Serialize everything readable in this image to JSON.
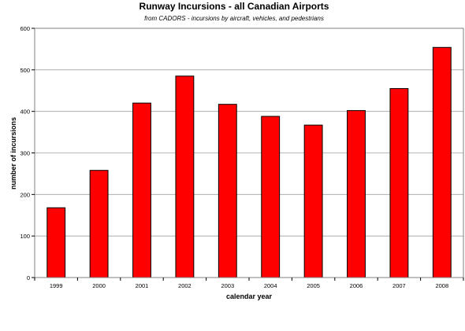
{
  "chart_data": {
    "type": "bar",
    "title": "Runway Incursions - all Canadian Airports",
    "subtitle": "from CADORS - incursions by aircraft, vehicles, and pedestrians",
    "xlabel": "calendar year",
    "ylabel": "number of incursions",
    "categories": [
      "1999",
      "2000",
      "2001",
      "2002",
      "2003",
      "2004",
      "2005",
      "2006",
      "2007",
      "2008"
    ],
    "values": [
      168,
      258,
      420,
      485,
      417,
      388,
      367,
      402,
      455,
      554
    ],
    "ylim": [
      0,
      600
    ],
    "yticks": [
      0,
      100,
      200,
      300,
      400,
      500,
      600
    ],
    "grid": true,
    "legend": "none",
    "bar_color": "#ff0000",
    "bar_edge_color": "#000000",
    "plot_border_color": "#808080",
    "grid_color": "#a0a0a0"
  }
}
